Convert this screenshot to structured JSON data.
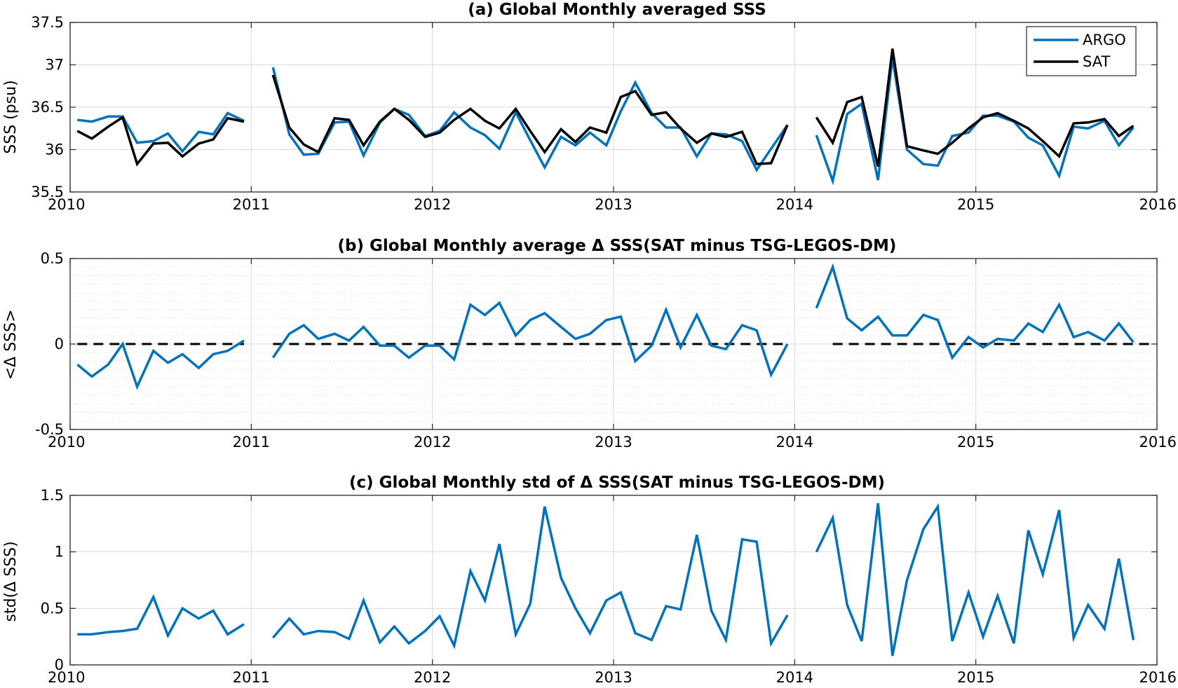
{
  "colors": {
    "argo": "#0072BD",
    "sat": "#000000",
    "zero_line": "#000000",
    "background": "#FFFFFF"
  },
  "chart_data": [
    {
      "type": "line",
      "title": "(a) Global Monthly averaged SSS",
      "ylabel": "SSS (psu)",
      "xlabel": "",
      "xlim": [
        2010,
        2016
      ],
      "ylim": [
        35.5,
        37.5
      ],
      "xticks": [
        2010,
        2011,
        2012,
        2013,
        2014,
        2015,
        2016
      ],
      "xtick_labels": [
        "2010",
        "2011",
        "2012",
        "2013",
        "2014",
        "2015",
        "2016"
      ],
      "yticks": [
        35.5,
        36,
        36.5,
        37,
        37.5
      ],
      "ytick_labels": [
        "35.5",
        "36",
        "36.5",
        "37",
        "37.5"
      ],
      "grid": true,
      "minor_grid": false,
      "legend": {
        "position": "top-right",
        "entries": [
          "ARGO",
          "SAT"
        ]
      },
      "x": [
        2010.04,
        2010.12,
        2010.21,
        2010.29,
        2010.37,
        2010.46,
        2010.54,
        2010.62,
        2010.71,
        2010.79,
        2010.87,
        2010.96,
        2011.04,
        2011.12,
        2011.21,
        2011.29,
        2011.37,
        2011.46,
        2011.54,
        2011.62,
        2011.71,
        2011.79,
        2011.87,
        2011.96,
        2012.04,
        2012.12,
        2012.21,
        2012.29,
        2012.37,
        2012.46,
        2012.54,
        2012.62,
        2012.71,
        2012.79,
        2012.87,
        2012.96,
        2013.04,
        2013.12,
        2013.21,
        2013.29,
        2013.37,
        2013.46,
        2013.54,
        2013.62,
        2013.71,
        2013.79,
        2013.87,
        2013.96,
        2014.04,
        2014.12,
        2014.21,
        2014.29,
        2014.37,
        2014.46,
        2014.54,
        2014.62,
        2014.71,
        2014.79,
        2014.87,
        2014.96,
        2015.04,
        2015.12,
        2015.21,
        2015.29,
        2015.37,
        2015.46,
        2015.54,
        2015.62,
        2015.71,
        2015.79,
        2015.87,
        2015.96
      ],
      "series": [
        {
          "name": "ARGO",
          "values": [
            36.35,
            36.33,
            36.39,
            36.39,
            36.08,
            36.1,
            36.19,
            35.98,
            36.21,
            36.18,
            36.43,
            36.34,
            null,
            36.97,
            36.18,
            35.94,
            35.95,
            36.32,
            36.33,
            35.93,
            36.32,
            36.48,
            36.41,
            36.16,
            36.22,
            36.44,
            36.26,
            36.17,
            36.01,
            36.44,
            36.11,
            35.79,
            36.15,
            36.05,
            36.2,
            36.05,
            36.45,
            36.79,
            36.43,
            36.26,
            36.26,
            35.92,
            36.19,
            36.18,
            36.1,
            35.76,
            36.01,
            36.29,
            null,
            36.17,
            35.63,
            36.42,
            36.54,
            35.64,
            37.08,
            36.0,
            35.83,
            35.81,
            36.16,
            36.2,
            36.4,
            36.4,
            36.33,
            36.14,
            36.05,
            35.69,
            36.27,
            36.25,
            36.34,
            36.05,
            36.26,
            null
          ]
        },
        {
          "name": "SAT",
          "values": [
            36.22,
            36.13,
            36.27,
            36.38,
            35.83,
            36.07,
            36.08,
            35.92,
            36.07,
            36.12,
            36.37,
            36.33,
            null,
            36.88,
            36.26,
            36.06,
            35.97,
            36.37,
            36.35,
            36.05,
            36.33,
            36.48,
            36.35,
            36.15,
            36.2,
            36.35,
            36.48,
            36.34,
            36.25,
            36.48,
            36.22,
            35.97,
            36.24,
            36.09,
            36.26,
            36.2,
            36.62,
            36.69,
            36.41,
            36.44,
            36.25,
            36.08,
            36.19,
            36.15,
            36.21,
            35.83,
            35.84,
            36.29,
            null,
            36.38,
            36.08,
            36.56,
            36.62,
            35.8,
            37.19,
            36.04,
            35.99,
            35.95,
            36.08,
            36.25,
            36.38,
            36.43,
            36.34,
            36.25,
            36.1,
            35.92,
            36.31,
            36.32,
            36.36,
            36.16,
            36.28,
            null
          ]
        }
      ]
    },
    {
      "type": "line",
      "title": "(b) Global Monthly average Δ SSS(SAT minus TSG-LEGOS-DM)",
      "ylabel": "<Δ SSS>",
      "xlabel": "",
      "xlim": [
        2010,
        2016
      ],
      "ylim": [
        -0.5,
        0.5
      ],
      "xticks": [
        2010,
        2011,
        2012,
        2013,
        2014,
        2015,
        2016
      ],
      "xtick_labels": [
        "2010",
        "2011",
        "2012",
        "2013",
        "2014",
        "2015",
        "2016"
      ],
      "yticks": [
        -0.5,
        0,
        0.5
      ],
      "ytick_labels": [
        "-0.5",
        "0",
        "0.5"
      ],
      "grid": true,
      "minor_grid": true,
      "reference_line": {
        "y": 0,
        "style": "dashed",
        "segments": [
          [
            2010.04,
            2010.96
          ],
          [
            2011.12,
            2013.96
          ],
          [
            2014.21,
            2015.96
          ]
        ]
      },
      "x": [
        2010.04,
        2010.12,
        2010.21,
        2010.29,
        2010.37,
        2010.46,
        2010.54,
        2010.62,
        2010.71,
        2010.79,
        2010.87,
        2010.96,
        2011.04,
        2011.12,
        2011.21,
        2011.29,
        2011.37,
        2011.46,
        2011.54,
        2011.62,
        2011.71,
        2011.79,
        2011.87,
        2011.96,
        2012.04,
        2012.12,
        2012.21,
        2012.29,
        2012.37,
        2012.46,
        2012.54,
        2012.62,
        2012.71,
        2012.79,
        2012.87,
        2012.96,
        2013.04,
        2013.12,
        2013.21,
        2013.29,
        2013.37,
        2013.46,
        2013.54,
        2013.62,
        2013.71,
        2013.79,
        2013.87,
        2013.96,
        2014.04,
        2014.12,
        2014.21,
        2014.29,
        2014.37,
        2014.46,
        2014.54,
        2014.62,
        2014.71,
        2014.79,
        2014.87,
        2014.96,
        2015.04,
        2015.12,
        2015.21,
        2015.29,
        2015.37,
        2015.46,
        2015.54,
        2015.62,
        2015.71,
        2015.79,
        2015.87,
        2015.96
      ],
      "series": [
        {
          "values": [
            -0.12,
            -0.19,
            -0.12,
            0.0,
            -0.25,
            -0.04,
            -0.11,
            -0.06,
            -0.14,
            -0.06,
            -0.04,
            0.02,
            null,
            -0.08,
            0.06,
            0.11,
            0.03,
            0.06,
            0.02,
            0.1,
            -0.01,
            -0.01,
            -0.08,
            -0.01,
            -0.01,
            -0.09,
            0.23,
            0.17,
            0.24,
            0.05,
            0.14,
            0.18,
            0.1,
            0.03,
            0.06,
            0.14,
            0.16,
            -0.1,
            -0.01,
            0.2,
            -0.02,
            0.17,
            -0.01,
            -0.03,
            0.11,
            0.08,
            -0.18,
            0.0,
            null,
            0.21,
            0.45,
            0.15,
            0.08,
            0.16,
            0.05,
            0.05,
            0.17,
            0.14,
            -0.08,
            0.04,
            -0.02,
            0.03,
            0.02,
            0.12,
            0.07,
            0.23,
            0.04,
            0.07,
            0.02,
            0.12,
            0.01,
            null
          ]
        }
      ]
    },
    {
      "type": "line",
      "title": "(c) Global Monthly std of Δ SSS(SAT minus TSG-LEGOS-DM)",
      "ylabel": "std(Δ SSS)",
      "xlabel": "",
      "xlim": [
        2010,
        2016
      ],
      "ylim": [
        0,
        1.5
      ],
      "xticks": [
        2010,
        2011,
        2012,
        2013,
        2014,
        2015,
        2016
      ],
      "xtick_labels": [
        "2010",
        "2011",
        "2012",
        "2013",
        "2014",
        "2015",
        "2016"
      ],
      "yticks": [
        0,
        0.5,
        1,
        1.5
      ],
      "ytick_labels": [
        "0",
        "0.5",
        "1",
        "1.5"
      ],
      "grid": true,
      "minor_grid": false,
      "x": [
        2010.04,
        2010.12,
        2010.21,
        2010.29,
        2010.37,
        2010.46,
        2010.54,
        2010.62,
        2010.71,
        2010.79,
        2010.87,
        2010.96,
        2011.04,
        2011.12,
        2011.21,
        2011.29,
        2011.37,
        2011.46,
        2011.54,
        2011.62,
        2011.71,
        2011.79,
        2011.87,
        2011.96,
        2012.04,
        2012.12,
        2012.21,
        2012.29,
        2012.37,
        2012.46,
        2012.54,
        2012.62,
        2012.71,
        2012.79,
        2012.87,
        2012.96,
        2013.04,
        2013.12,
        2013.21,
        2013.29,
        2013.37,
        2013.46,
        2013.54,
        2013.62,
        2013.71,
        2013.79,
        2013.87,
        2013.96,
        2014.04,
        2014.12,
        2014.21,
        2014.29,
        2014.37,
        2014.46,
        2014.54,
        2014.62,
        2014.71,
        2014.79,
        2014.87,
        2014.96,
        2015.04,
        2015.12,
        2015.21,
        2015.29,
        2015.37,
        2015.46,
        2015.54,
        2015.62,
        2015.71,
        2015.79,
        2015.87,
        2015.96
      ],
      "series": [
        {
          "values": [
            0.27,
            0.27,
            0.29,
            0.3,
            0.32,
            0.6,
            0.26,
            0.5,
            0.41,
            0.48,
            0.27,
            0.36,
            null,
            0.24,
            0.41,
            0.27,
            0.3,
            0.29,
            0.23,
            0.57,
            0.2,
            0.34,
            0.19,
            0.3,
            0.43,
            0.17,
            0.83,
            0.57,
            1.07,
            0.27,
            0.54,
            1.4,
            0.77,
            0.5,
            0.28,
            0.57,
            0.64,
            0.28,
            0.22,
            0.52,
            0.49,
            1.15,
            0.48,
            0.22,
            1.11,
            1.09,
            0.19,
            0.44,
            null,
            1.0,
            1.3,
            0.53,
            0.21,
            1.43,
            0.08,
            0.75,
            1.2,
            1.4,
            0.21,
            0.64,
            0.25,
            0.61,
            0.19,
            1.19,
            0.8,
            1.37,
            0.24,
            0.53,
            0.32,
            0.94,
            0.22,
            null
          ]
        }
      ]
    }
  ]
}
